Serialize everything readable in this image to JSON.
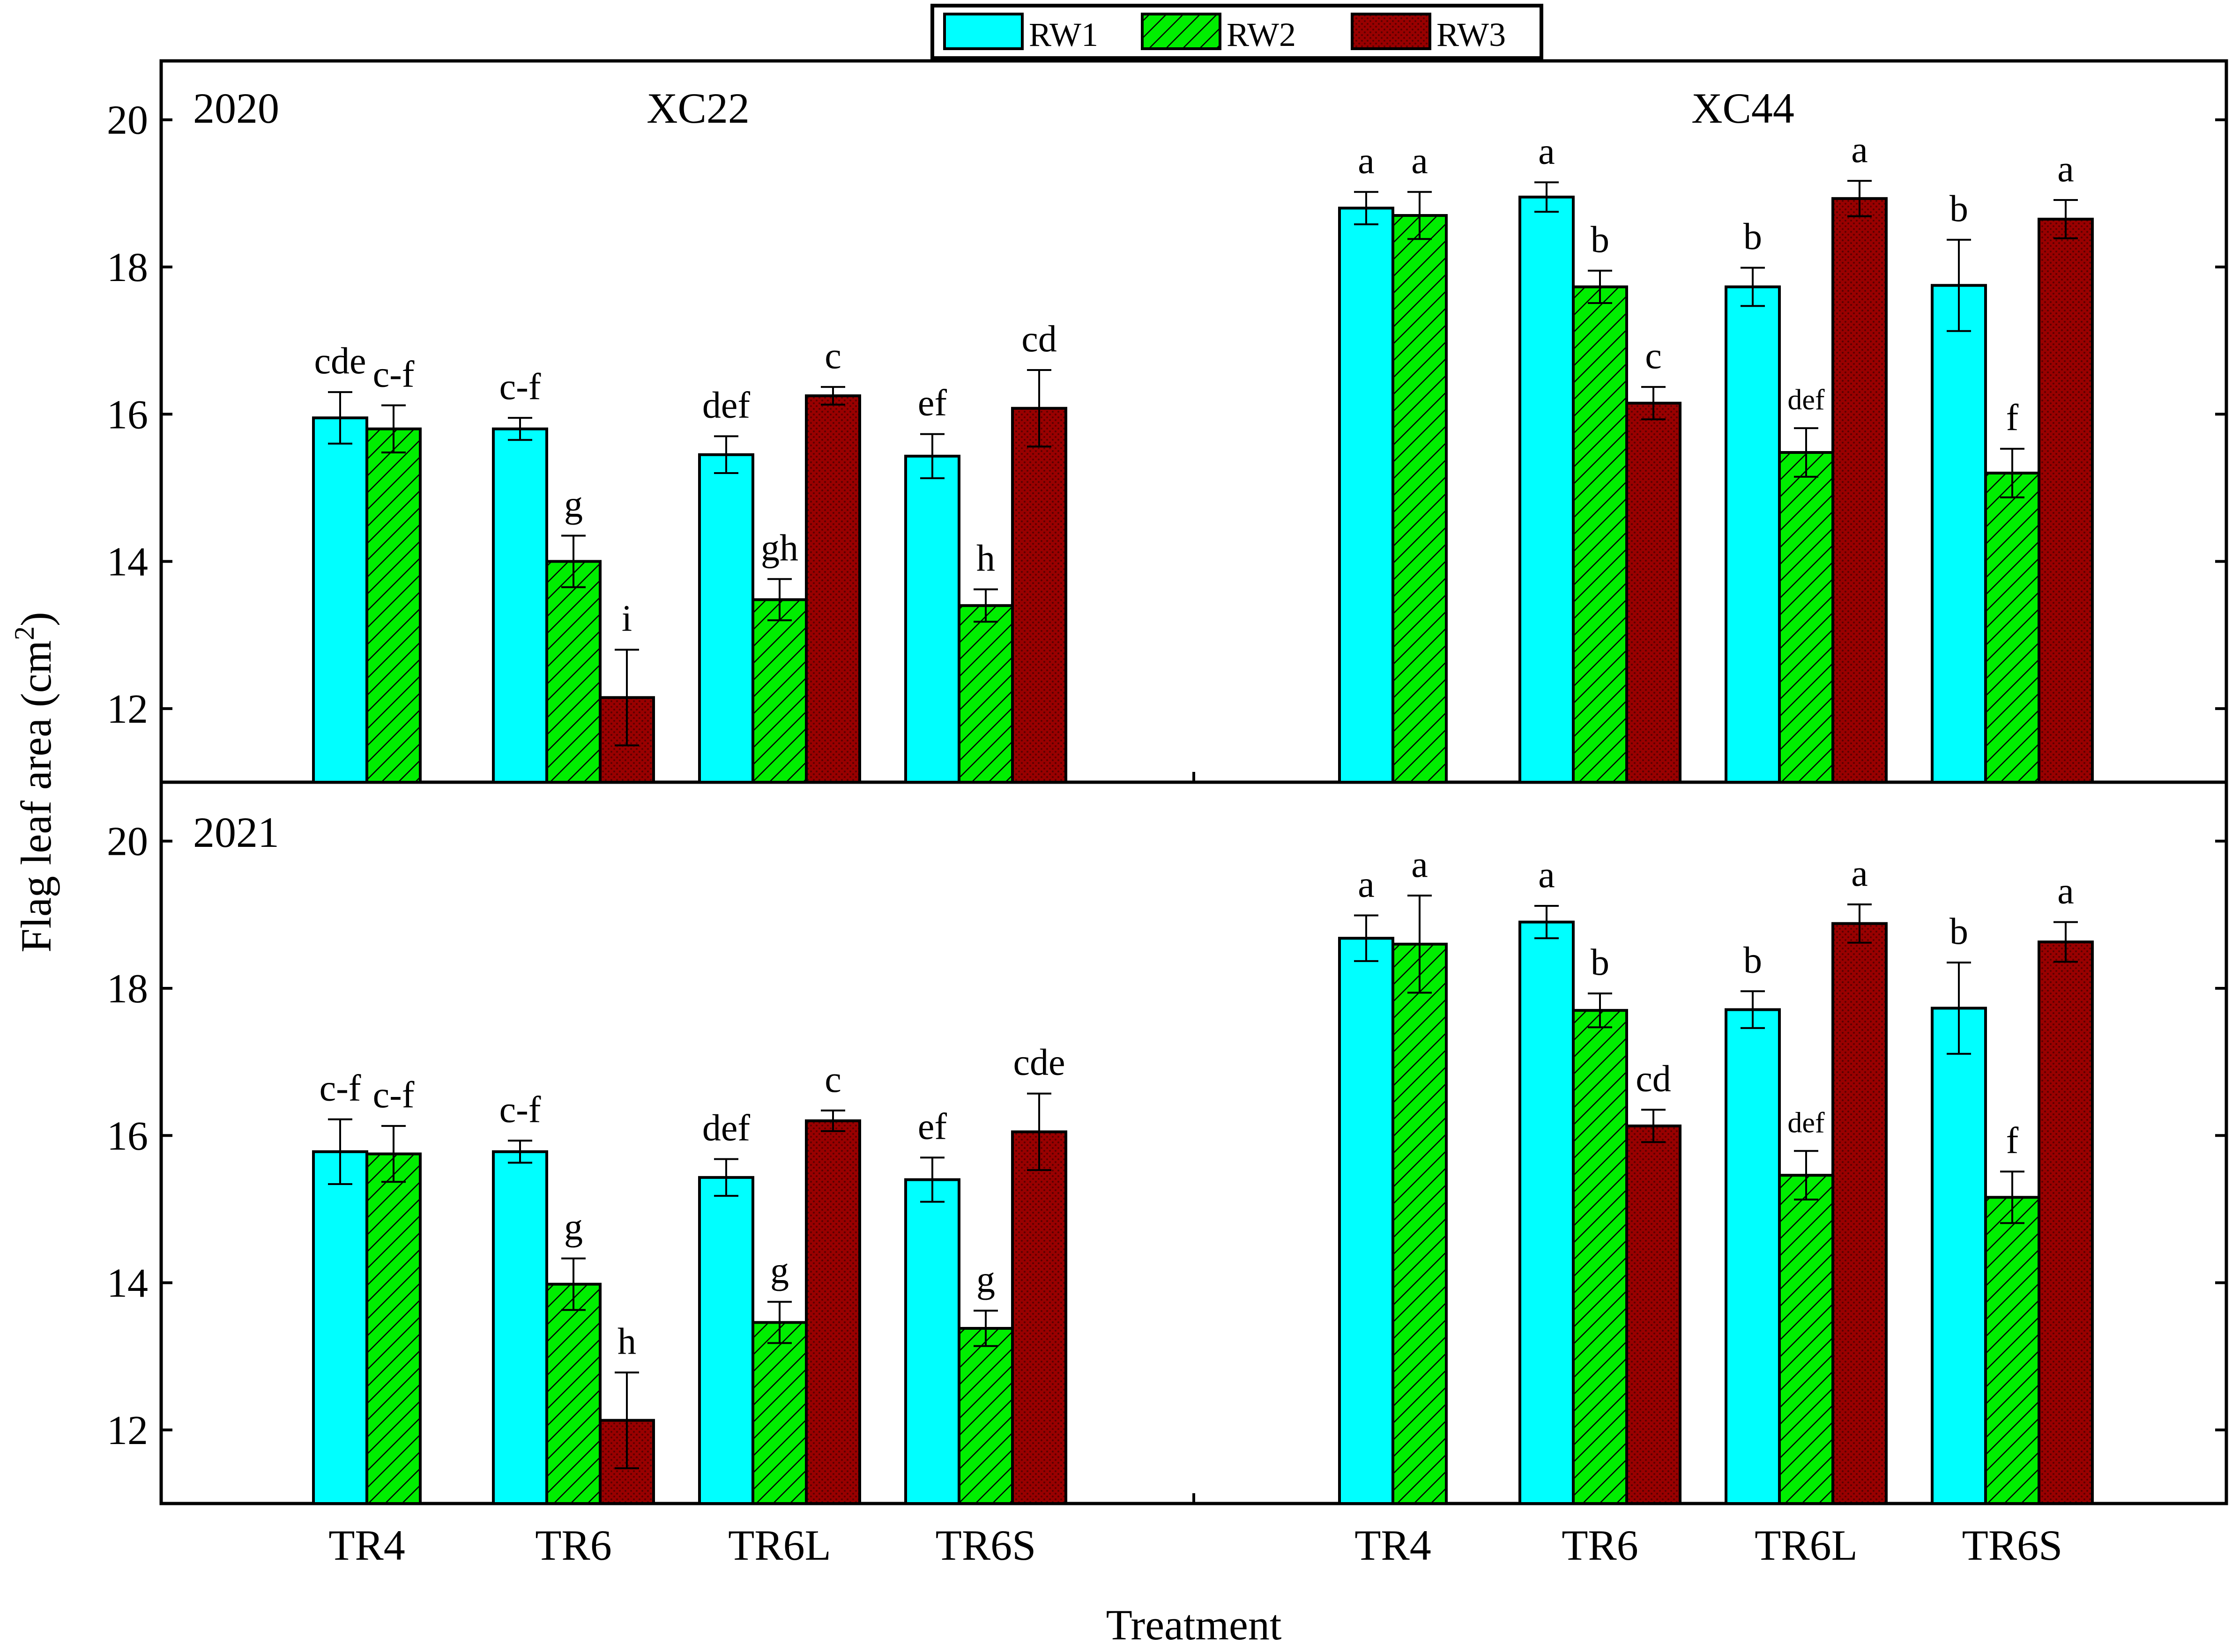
{
  "colors": {
    "rw1": "#00ffff",
    "rw2": "#00ee00",
    "rw3": "#990000",
    "hatch": "#000000",
    "axis": "#000000",
    "background": "#ffffff"
  },
  "chart_data": [
    {
      "type": "bar",
      "panel": "top",
      "year_label": "2020",
      "group_titles": [
        "XC22",
        "XC44"
      ],
      "ylabel": "Flag leaf area (cm2)",
      "ylim": [
        11.0,
        20.8
      ],
      "yticks": [
        12,
        14,
        16,
        18,
        20
      ],
      "series_names": [
        "RW1",
        "RW2",
        "RW3"
      ],
      "groups": [
        {
          "name": "XC22",
          "categories": [
            {
              "name": "TR4",
              "values": [
                15.95,
                15.8,
                null
              ],
              "errors": [
                0.35,
                0.32,
                null
              ],
              "letters": [
                "cde",
                "c-f",
                null
              ]
            },
            {
              "name": "TR6",
              "values": [
                15.8,
                14.0,
                12.15
              ],
              "errors": [
                0.15,
                0.35,
                0.65
              ],
              "letters": [
                "c-f",
                "g",
                "i"
              ]
            },
            {
              "name": "TR6L",
              "values": [
                15.45,
                13.48,
                16.25
              ],
              "errors": [
                0.25,
                0.28,
                0.12
              ],
              "letters": [
                "def",
                "gh",
                "c"
              ]
            },
            {
              "name": "TR6S",
              "values": [
                15.43,
                13.4,
                16.08
              ],
              "errors": [
                0.3,
                0.22,
                0.52
              ],
              "letters": [
                "ef",
                "h",
                "cd"
              ]
            }
          ]
        },
        {
          "name": "XC44",
          "categories": [
            {
              "name": "TR4",
              "values": [
                18.8,
                18.7,
                null
              ],
              "errors": [
                0.22,
                0.32,
                null
              ],
              "letters": [
                "a",
                "a",
                null
              ]
            },
            {
              "name": "TR6",
              "values": [
                18.95,
                17.73,
                16.15
              ],
              "errors": [
                0.2,
                0.22,
                0.22
              ],
              "letters": [
                "a",
                "b",
                "c"
              ]
            },
            {
              "name": "TR6L",
              "values": [
                17.73,
                15.48,
                18.93
              ],
              "errors": [
                0.26,
                0.33,
                0.24
              ],
              "letters": [
                "b",
                "def",
                "a"
              ]
            },
            {
              "name": "TR6S",
              "values": [
                17.75,
                15.2,
                18.65
              ],
              "errors": [
                0.62,
                0.33,
                0.26
              ],
              "letters": [
                "b",
                "f",
                "a"
              ]
            }
          ]
        }
      ]
    },
    {
      "type": "bar",
      "panel": "bottom",
      "year_label": "2021",
      "ylabel": "Flag leaf area (cm2)",
      "ylim": [
        11.0,
        20.8
      ],
      "yticks": [
        12,
        14,
        16,
        18,
        20
      ],
      "series_names": [
        "RW1",
        "RW2",
        "RW3"
      ],
      "groups": [
        {
          "name": "XC22",
          "categories": [
            {
              "name": "TR4",
              "values": [
                15.78,
                15.75,
                null
              ],
              "errors": [
                0.44,
                0.38,
                null
              ],
              "letters": [
                "c-f",
                "c-f",
                null
              ]
            },
            {
              "name": "TR6",
              "values": [
                15.78,
                13.98,
                12.13
              ],
              "errors": [
                0.15,
                0.35,
                0.65
              ],
              "letters": [
                "c-f",
                "g",
                "h"
              ]
            },
            {
              "name": "TR6L",
              "values": [
                15.43,
                13.46,
                16.2
              ],
              "errors": [
                0.25,
                0.28,
                0.14
              ],
              "letters": [
                "def",
                "g",
                "c"
              ]
            },
            {
              "name": "TR6S",
              "values": [
                15.4,
                13.38,
                16.05
              ],
              "errors": [
                0.3,
                0.24,
                0.52
              ],
              "letters": [
                "ef",
                "g",
                "cde"
              ]
            }
          ]
        },
        {
          "name": "XC44",
          "categories": [
            {
              "name": "TR4",
              "values": [
                18.68,
                18.6,
                null
              ],
              "errors": [
                0.31,
                0.66,
                null
              ],
              "letters": [
                "a",
                "a",
                null
              ]
            },
            {
              "name": "TR6",
              "values": [
                18.9,
                17.7,
                16.13
              ],
              "errors": [
                0.22,
                0.23,
                0.22
              ],
              "letters": [
                "a",
                "b",
                "cd"
              ]
            },
            {
              "name": "TR6L",
              "values": [
                17.71,
                15.46,
                18.88
              ],
              "errors": [
                0.25,
                0.33,
                0.26
              ],
              "letters": [
                "b",
                "def",
                "a"
              ]
            },
            {
              "name": "TR6S",
              "values": [
                17.73,
                15.16,
                18.63
              ],
              "errors": [
                0.62,
                0.35,
                0.27
              ],
              "letters": [
                "b",
                "f",
                "a"
              ]
            }
          ]
        }
      ]
    }
  ],
  "xlabel": "Treatment",
  "y_axis_label": "Flag leaf area (cm",
  "y_axis_label_sup": "2",
  "y_axis_label_end": ")",
  "legend": [
    {
      "key": "rw1",
      "label": "RW1"
    },
    {
      "key": "rw2",
      "label": "RW2"
    },
    {
      "key": "rw3",
      "label": "RW3"
    }
  ]
}
